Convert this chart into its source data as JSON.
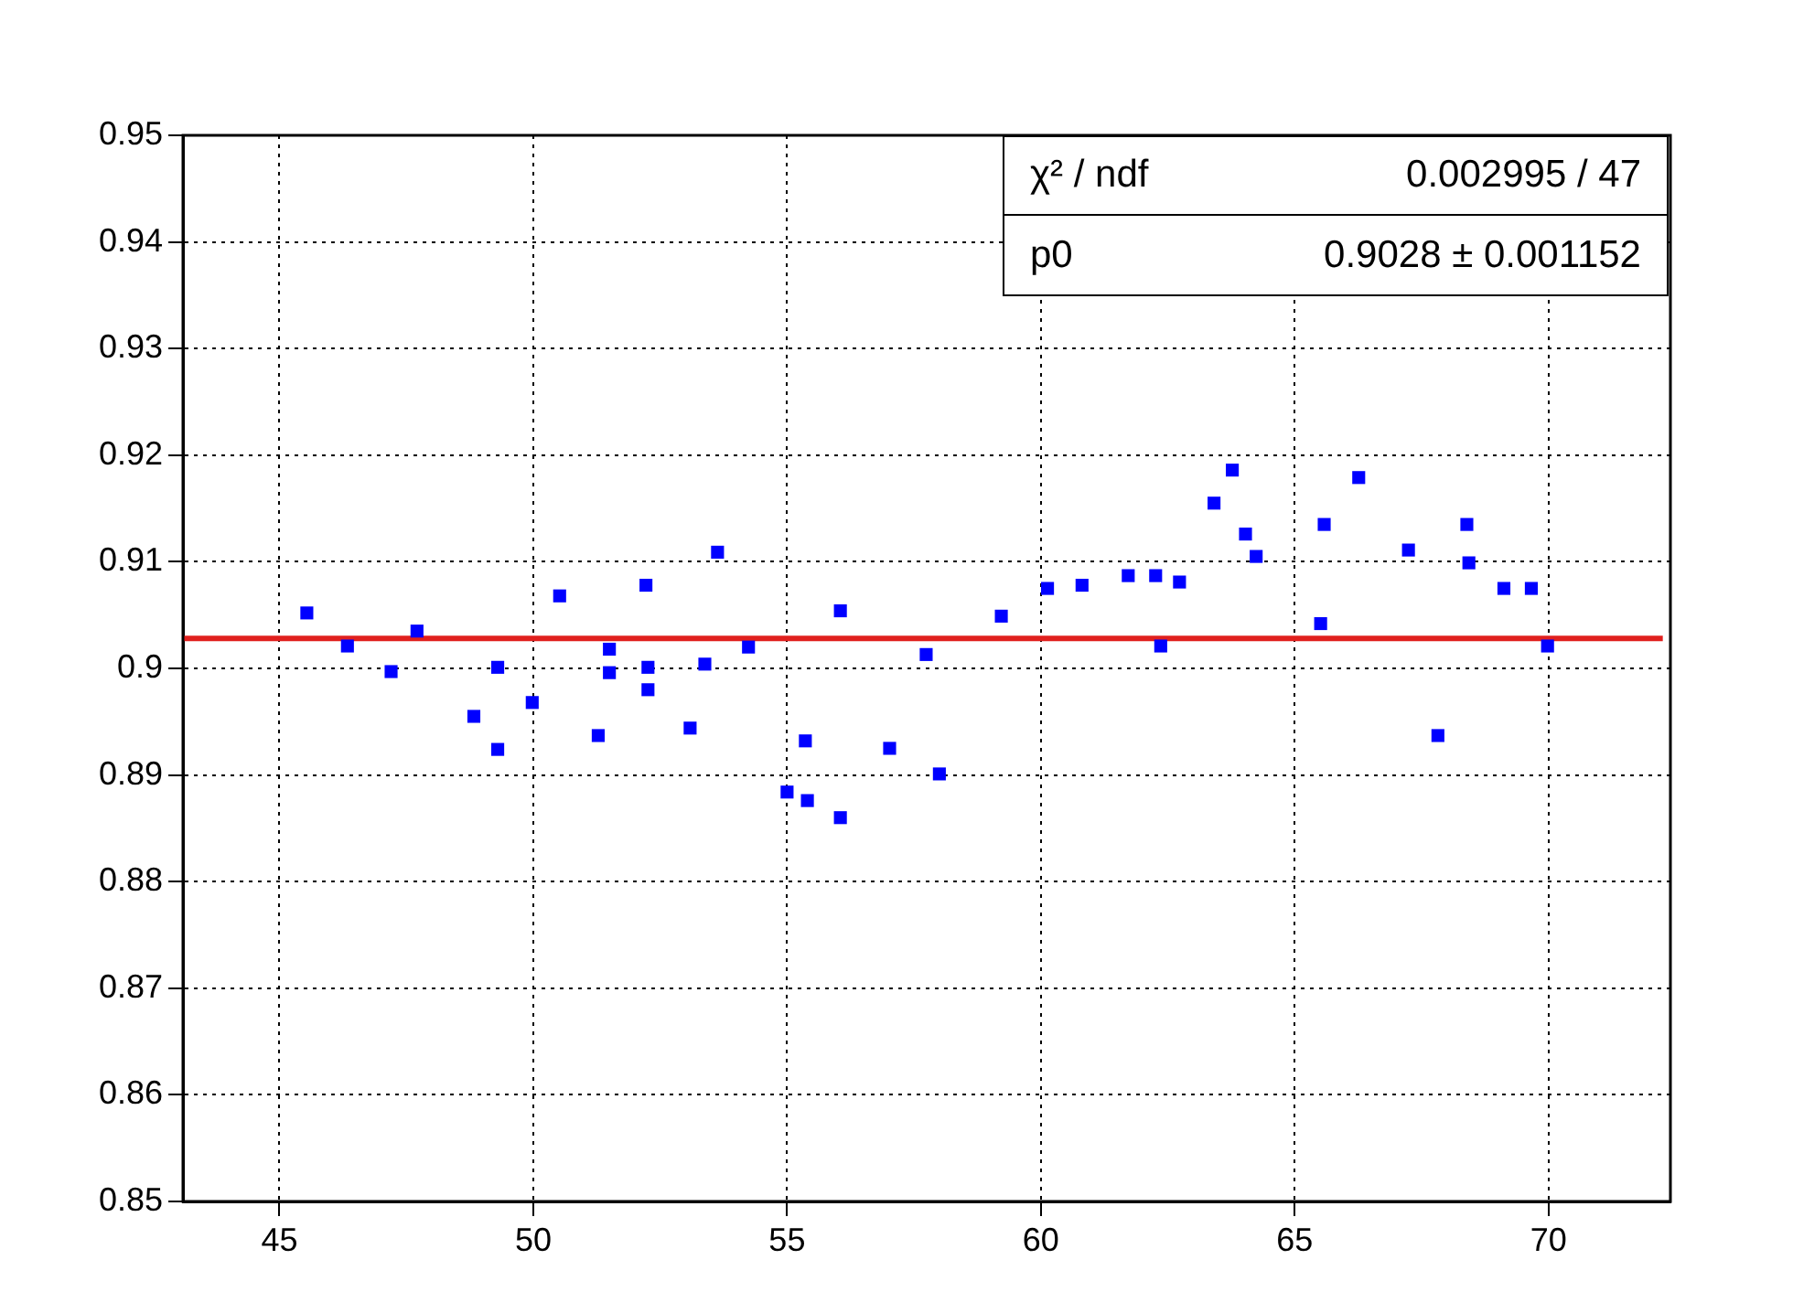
{
  "chart_data": {
    "type": "scatter",
    "xlim": [
      43.1,
      72.4
    ],
    "ylim": [
      0.85,
      0.95
    ],
    "xticks": [
      45,
      50,
      55,
      60,
      65,
      70
    ],
    "yticks": [
      0.85,
      0.86,
      0.87,
      0.88,
      0.89,
      0.9,
      0.91,
      0.92,
      0.93,
      0.94,
      0.95
    ],
    "grid": true,
    "legend": false,
    "series": [
      {
        "marker": "square",
        "color": "#0000ff",
        "x": [
          45.54,
          46.34,
          47.2,
          47.71,
          48.83,
          49.3,
          49.3,
          49.98,
          50.52,
          51.28,
          51.5,
          51.5,
          52.22,
          52.26,
          52.26,
          53.09,
          53.38,
          53.63,
          54.24,
          55.0,
          55.36,
          55.4,
          56.05,
          56.05,
          57.02,
          57.74,
          58.0,
          59.22,
          60.13,
          60.81,
          61.72,
          62.26,
          62.36,
          62.73,
          63.41,
          63.77,
          64.03,
          64.24,
          65.51,
          65.58,
          66.26,
          67.24,
          67.82,
          68.39,
          68.43,
          69.12,
          69.66,
          69.98
        ],
        "values": [
          0.9052,
          0.9021,
          0.8997,
          0.9035,
          0.8955,
          0.9001,
          0.8924,
          0.8968,
          0.9068,
          0.8937,
          0.9018,
          0.8996,
          0.9078,
          0.9001,
          0.898,
          0.8944,
          0.9004,
          0.9109,
          0.902,
          0.8884,
          0.8932,
          0.8876,
          0.9054,
          0.886,
          0.8925,
          0.9013,
          0.8901,
          0.9049,
          0.9075,
          0.9078,
          0.9087,
          0.9087,
          0.9021,
          0.9081,
          0.9155,
          0.9186,
          0.9126,
          0.9105,
          0.9042,
          0.9135,
          0.9179,
          0.9111,
          0.8937,
          0.9135,
          0.9099,
          0.9075,
          0.9075,
          0.9021
        ]
      },
      {
        "type": "line",
        "marker": "none",
        "color": "#e0201e",
        "x": [
          43.1,
          72.25
        ],
        "values": [
          0.9028,
          0.9028
        ]
      }
    ],
    "annotations": [
      "χ² / ndf",
      "0.002995 / 47",
      "p0",
      "0.9028 ± 0.001152"
    ]
  }
}
